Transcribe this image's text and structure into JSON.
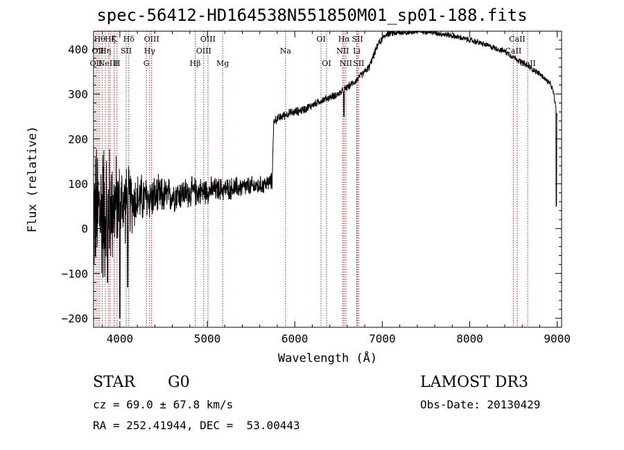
{
  "chart_data": {
    "type": "line",
    "title": "spec-56412-HD164538N551850M01_sp01-188.fits",
    "xlabel": "Wavelength (Å)",
    "ylabel": "Flux (relative)",
    "xlim": [
      3700,
      9050
    ],
    "ylim": [
      -220,
      440
    ],
    "xticks": [
      4000,
      5000,
      6000,
      7000,
      8000,
      9000
    ],
    "xtick_labels": [
      "4000",
      "5000",
      "6000",
      "7000",
      "8000",
      "9000"
    ],
    "yticks": [
      -200,
      -100,
      0,
      100,
      200,
      300,
      400
    ],
    "ytick_labels": [
      "−200",
      "−100",
      "0",
      "100",
      "200",
      "300",
      "400"
    ],
    "spectrum_anchors": [
      [
        3700,
        30,
        180
      ],
      [
        3800,
        40,
        200
      ],
      [
        3900,
        50,
        160
      ],
      [
        4000,
        55,
        110
      ],
      [
        4100,
        60,
        95
      ],
      [
        4200,
        65,
        70
      ],
      [
        4400,
        70,
        55
      ],
      [
        4600,
        75,
        45
      ],
      [
        4800,
        80,
        40
      ],
      [
        5000,
        85,
        35
      ],
      [
        5200,
        88,
        30
      ],
      [
        5400,
        92,
        28
      ],
      [
        5600,
        95,
        25
      ],
      [
        5740,
        105,
        22
      ],
      [
        5760,
        240,
        12
      ],
      [
        5900,
        255,
        12
      ],
      [
        6100,
        265,
        12
      ],
      [
        6300,
        285,
        10
      ],
      [
        6500,
        300,
        10
      ],
      [
        6700,
        330,
        10
      ],
      [
        6850,
        360,
        10
      ],
      [
        6950,
        410,
        10
      ],
      [
        7050,
        435,
        10
      ],
      [
        7300,
        438,
        8
      ],
      [
        7500,
        440,
        8
      ],
      [
        7800,
        430,
        8
      ],
      [
        8100,
        415,
        8
      ],
      [
        8400,
        395,
        8
      ],
      [
        8600,
        370,
        8
      ],
      [
        8800,
        345,
        8
      ],
      [
        8930,
        320,
        8
      ],
      [
        8960,
        300,
        8
      ],
      [
        9000,
        250,
        8
      ]
    ],
    "spectrum_dips": [
      {
        "x": 4000,
        "y": -200
      },
      {
        "x": 4090,
        "y": -130
      },
      {
        "x": 3860,
        "y": -120
      },
      {
        "x": 6563,
        "y": 250
      },
      {
        "x": 8990,
        "y": 50
      }
    ],
    "line_markers": [
      {
        "wavelength": 3727,
        "row": 3,
        "label": "OII"
      },
      {
        "wavelength": 3750,
        "row": 2,
        "label": "OII"
      },
      {
        "wavelength": 3770,
        "row": 1,
        "label": "Hθ"
      },
      {
        "wavelength": 3798,
        "row": 3,
        "label": ""
      },
      {
        "wavelength": 3835,
        "row": 2,
        "label": "Hη"
      },
      {
        "wavelength": 3869,
        "row": 3,
        "label": "NeIII"
      },
      {
        "wavelength": 3889,
        "row": 1,
        "label": "Hζ"
      },
      {
        "wavelength": 3934,
        "row": 1,
        "label": "K"
      },
      {
        "wavelength": 3968,
        "row": 3,
        "label": "H"
      },
      {
        "wavelength": 4072,
        "row": 2,
        "label": "SII"
      },
      {
        "wavelength": 4102,
        "row": 1,
        "label": "Hδ"
      },
      {
        "wavelength": 4304,
        "row": 3,
        "label": "G"
      },
      {
        "wavelength": 4340,
        "row": 2,
        "label": "Hγ"
      },
      {
        "wavelength": 4363,
        "row": 1,
        "label": "OIII"
      },
      {
        "wavelength": 4861,
        "row": 3,
        "label": "Hβ"
      },
      {
        "wavelength": 4959,
        "row": 2,
        "label": "OIII"
      },
      {
        "wavelength": 5007,
        "row": 1,
        "label": "OIII"
      },
      {
        "wavelength": 5175,
        "row": 3,
        "label": "Mg"
      },
      {
        "wavelength": 5894,
        "row": 2,
        "label": "Na"
      },
      {
        "wavelength": 6300,
        "row": 1,
        "label": "OI"
      },
      {
        "wavelength": 6363,
        "row": 3,
        "label": "OI"
      },
      {
        "wavelength": 6548,
        "row": 2,
        "label": "NII"
      },
      {
        "wavelength": 6563,
        "row": 1,
        "label": "Hα"
      },
      {
        "wavelength": 6584,
        "row": 3,
        "label": "NII"
      },
      {
        "wavelength": 6708,
        "row": 2,
        "label": "Li"
      },
      {
        "wavelength": 6717,
        "row": 1,
        "label": "SII"
      },
      {
        "wavelength": 6731,
        "row": 3,
        "label": "SII"
      },
      {
        "wavelength": 8498,
        "row": 2,
        "label": "CaII"
      },
      {
        "wavelength": 8542,
        "row": 1,
        "label": "CaII"
      },
      {
        "wavelength": 8662,
        "row": 3,
        "label": "CaII"
      }
    ]
  },
  "info": {
    "object_class": "STAR",
    "subclass": "G0",
    "survey": "LAMOST DR3",
    "redshift_text": "cz = 69.0 ± 67.8 km/s",
    "obs_date_text": "Obs-Date: 20130429",
    "coords_text": "RA = 252.41944, DEC =  53.00443"
  },
  "colors": {
    "spectrum": "#000000",
    "line_markers": "#b02020",
    "axes": "#000000"
  }
}
